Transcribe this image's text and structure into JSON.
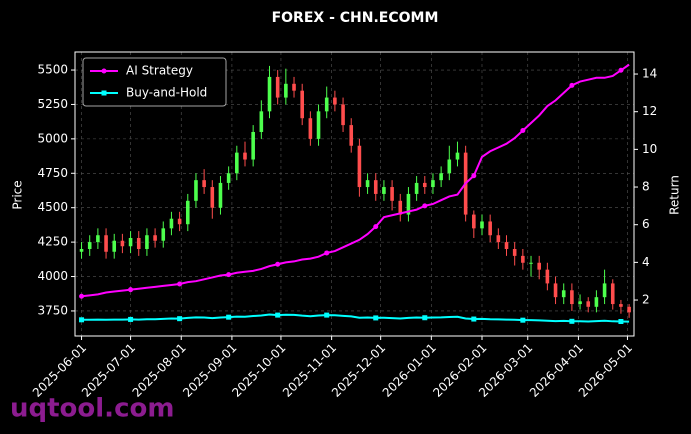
{
  "chart_data": {
    "type": "candlestick",
    "title": "FOREX - CHN.ECOMM",
    "ylabel": "Price",
    "y2label": "Return",
    "watermark": "uqtool.com",
    "grid": true,
    "legend": "upper left",
    "up_color": "#4dff4d",
    "down_color": "#ff4d4d",
    "x": [
      "2025-06-01",
      "2025-06-06",
      "2025-06-11",
      "2025-06-16",
      "2025-06-21",
      "2025-06-26",
      "2025-07-01",
      "2025-07-06",
      "2025-07-11",
      "2025-07-16",
      "2025-07-21",
      "2025-07-26",
      "2025-07-31",
      "2025-08-05",
      "2025-08-10",
      "2025-08-15",
      "2025-08-20",
      "2025-08-25",
      "2025-08-30",
      "2025-09-04",
      "2025-09-09",
      "2025-09-14",
      "2025-09-19",
      "2025-09-24",
      "2025-09-29",
      "2025-10-04",
      "2025-10-09",
      "2025-10-14",
      "2025-10-19",
      "2025-10-24",
      "2025-10-29",
      "2025-11-03",
      "2025-11-08",
      "2025-11-13",
      "2025-11-18",
      "2025-11-23",
      "2025-11-28",
      "2025-12-03",
      "2025-12-08",
      "2025-12-13",
      "2025-12-18",
      "2025-12-23",
      "2025-12-28",
      "2026-01-02",
      "2026-01-07",
      "2026-01-12",
      "2026-01-17",
      "2026-01-22",
      "2026-01-27",
      "2026-02-01",
      "2026-02-06",
      "2026-02-11",
      "2026-02-16",
      "2026-02-21",
      "2026-02-26",
      "2026-03-03",
      "2026-03-08",
      "2026-03-13",
      "2026-03-18",
      "2026-03-23",
      "2026-03-28",
      "2026-04-02",
      "2026-04-07",
      "2026-04-12",
      "2026-04-17",
      "2026-04-22",
      "2026-04-27",
      "2026-05-02"
    ],
    "open": [
      4180,
      4200,
      4250,
      4300,
      4180,
      4260,
      4220,
      4280,
      4200,
      4300,
      4260,
      4350,
      4420,
      4380,
      4550,
      4700,
      4650,
      4500,
      4680,
      4750,
      4900,
      4850,
      5050,
      5200,
      5450,
      5300,
      5400,
      5350,
      5150,
      5000,
      5200,
      5300,
      5250,
      5100,
      4950,
      4650,
      4700,
      4600,
      4650,
      4550,
      4450,
      4600,
      4680,
      4650,
      4700,
      4750,
      4850,
      4900,
      4450,
      4350,
      4400,
      4300,
      4250,
      4200,
      4150,
      4100,
      4100,
      4050,
      3950,
      3850,
      3900,
      3800,
      3820,
      3780,
      3850,
      3950,
      3800,
      3780
    ],
    "high": [
      4250,
      4300,
      4350,
      4350,
      4310,
      4310,
      4330,
      4330,
      4350,
      4350,
      4400,
      4470,
      4470,
      4600,
      4750,
      4780,
      4700,
      4730,
      4800,
      4950,
      4980,
      5100,
      5280,
      5530,
      5500,
      5510,
      5450,
      5400,
      5200,
      5250,
      5380,
      5350,
      5300,
      5150,
      5000,
      4750,
      4750,
      4700,
      4700,
      4600,
      4650,
      4730,
      4730,
      4750,
      4800,
      4950,
      4980,
      4950,
      4480,
      4450,
      4450,
      4350,
      4300,
      4250,
      4200,
      4150,
      4150,
      4100,
      4000,
      3950,
      3950,
      3870,
      3850,
      3900,
      4050,
      3980,
      3830,
      3800
    ],
    "low": [
      4130,
      4150,
      4200,
      4130,
      4130,
      4170,
      4170,
      4150,
      4150,
      4210,
      4210,
      4300,
      4330,
      4330,
      4500,
      4600,
      4420,
      4450,
      4630,
      4700,
      4800,
      4800,
      5000,
      5150,
      5250,
      5250,
      5300,
      5100,
      4950,
      4950,
      5150,
      5200,
      5050,
      4900,
      4580,
      4600,
      4550,
      4550,
      4480,
      4400,
      4400,
      4550,
      4600,
      4600,
      4650,
      4700,
      4800,
      4400,
      4280,
      4300,
      4250,
      4200,
      4150,
      4080,
      4050,
      4000,
      3980,
      3900,
      3800,
      3800,
      3750,
      3760,
      3740,
      3740,
      3800,
      3760,
      3730,
      3700
    ],
    "close": [
      4200,
      4250,
      4300,
      4180,
      4260,
      4220,
      4280,
      4200,
      4300,
      4260,
      4350,
      4420,
      4380,
      4550,
      4700,
      4650,
      4500,
      4680,
      4750,
      4900,
      4850,
      5050,
      5200,
      5450,
      5300,
      5400,
      5350,
      5150,
      5000,
      5200,
      5300,
      5250,
      5100,
      4950,
      4650,
      4700,
      4600,
      4650,
      4550,
      4450,
      4600,
      4680,
      4650,
      4700,
      4750,
      4850,
      4900,
      4450,
      4350,
      4400,
      4300,
      4250,
      4200,
      4150,
      4100,
      4100,
      4050,
      3950,
      3850,
      3900,
      3800,
      3820,
      3780,
      3850,
      3950,
      3800,
      3780,
      3740
    ],
    "series": [
      {
        "name": "AI Strategy",
        "color": "#ff00ff",
        "marker": "circle",
        "axis": "y2",
        "values": [
          2.2,
          2.25,
          2.3,
          2.4,
          2.45,
          2.5,
          2.55,
          2.6,
          2.65,
          2.7,
          2.75,
          2.8,
          2.85,
          2.95,
          3.0,
          3.1,
          3.2,
          3.3,
          3.35,
          3.45,
          3.5,
          3.55,
          3.65,
          3.8,
          3.9,
          4.0,
          4.05,
          4.15,
          4.2,
          4.3,
          4.5,
          4.6,
          4.8,
          5.0,
          5.2,
          5.5,
          5.9,
          6.4,
          6.5,
          6.6,
          6.7,
          6.8,
          7.0,
          7.1,
          7.3,
          7.5,
          7.6,
          8.2,
          8.6,
          9.6,
          9.9,
          10.1,
          10.3,
          10.6,
          11.0,
          11.4,
          11.8,
          12.3,
          12.6,
          13.0,
          13.4,
          13.6,
          13.7,
          13.8,
          13.8,
          13.9,
          14.2,
          14.5
        ]
      },
      {
        "name": "Buy-and-Hold",
        "color": "#00ffff",
        "marker": "square",
        "axis": "y2",
        "values": [
          0.95,
          0.95,
          0.96,
          0.95,
          0.96,
          0.96,
          0.97,
          0.96,
          0.98,
          0.98,
          1.0,
          1.02,
          1.01,
          1.05,
          1.08,
          1.07,
          1.04,
          1.07,
          1.09,
          1.12,
          1.11,
          1.15,
          1.18,
          1.23,
          1.2,
          1.22,
          1.21,
          1.17,
          1.14,
          1.18,
          1.2,
          1.19,
          1.16,
          1.13,
          1.06,
          1.07,
          1.05,
          1.06,
          1.04,
          1.02,
          1.05,
          1.07,
          1.06,
          1.07,
          1.08,
          1.1,
          1.11,
          1.02,
          0.99,
          1.0,
          0.98,
          0.97,
          0.96,
          0.95,
          0.93,
          0.93,
          0.92,
          0.9,
          0.88,
          0.89,
          0.87,
          0.87,
          0.86,
          0.88,
          0.9,
          0.87,
          0.86,
          0.85
        ]
      }
    ],
    "xlim": [
      "2025-05-28",
      "2026-05-05"
    ],
    "xticks": [
      "2025-06-01",
      "2025-07-01",
      "2025-08-01",
      "2025-09-01",
      "2025-10-01",
      "2025-11-01",
      "2025-12-01",
      "2026-01-01",
      "2026-02-01",
      "2026-03-01",
      "2026-04-01",
      "2026-05-01"
    ],
    "ylim": [
      3568,
      5631
    ],
    "yticks": [
      3750,
      4000,
      4250,
      4500,
      4750,
      5000,
      5250,
      5500
    ],
    "y2lim": [
      0.09,
      15.17
    ],
    "y2ticks": [
      2,
      4,
      6,
      8,
      10,
      12,
      14
    ]
  }
}
